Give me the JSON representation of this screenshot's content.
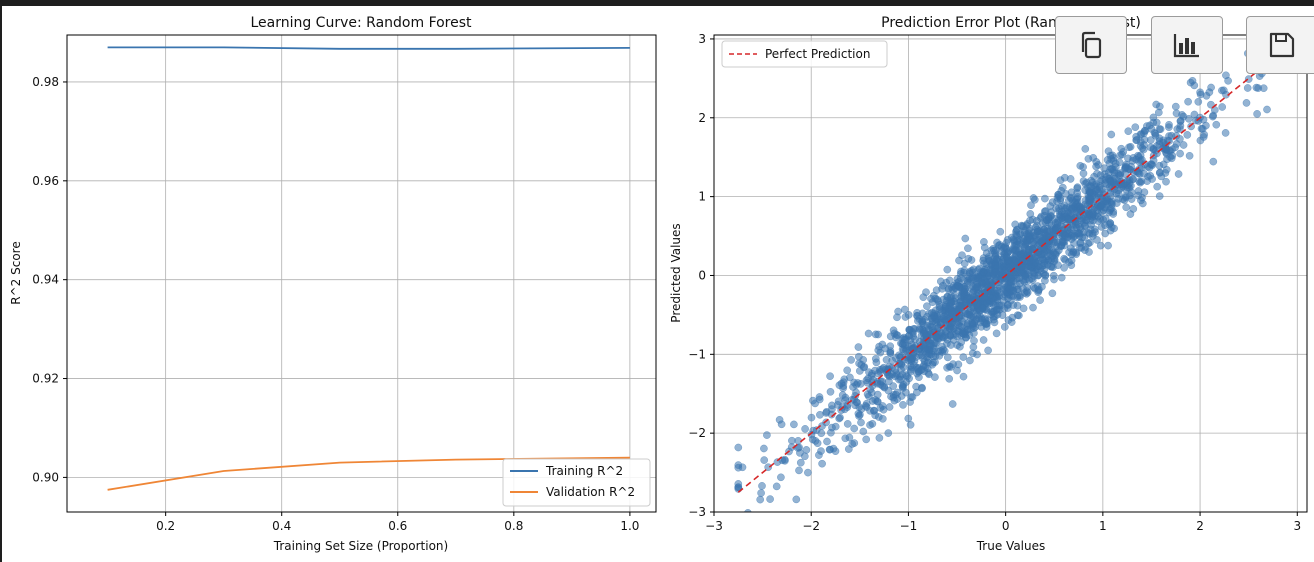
{
  "toolbar": {
    "copy": "copy-icon",
    "chart": "bar-chart-icon",
    "save": "save-icon"
  },
  "chart_data": [
    {
      "type": "line",
      "title": "Learning Curve: Random Forest",
      "xlabel": "Training Set Size (Proportion)",
      "ylabel": "R^2 Score",
      "xlim": [
        0.03,
        1.045
      ],
      "ylim": [
        0.893,
        0.9895
      ],
      "xticks": [
        0.2,
        0.4,
        0.6,
        0.8,
        1.0
      ],
      "xtick_labels": [
        "0.2",
        "0.4",
        "0.6",
        "0.8",
        "1.0"
      ],
      "yticks": [
        0.9,
        0.92,
        0.94,
        0.96,
        0.98
      ],
      "ytick_labels": [
        "0.90",
        "0.92",
        "0.94",
        "0.96",
        "0.98"
      ],
      "grid": true,
      "legend_position": "bottom-right",
      "series": [
        {
          "name": "Training R^2",
          "color": "#3a75af",
          "x": [
            0.1,
            0.3,
            0.5,
            0.7,
            1.0
          ],
          "y": [
            0.987,
            0.987,
            0.9867,
            0.9867,
            0.9869
          ]
        },
        {
          "name": "Validation R^2",
          "color": "#ef8636",
          "x": [
            0.1,
            0.3,
            0.5,
            0.7,
            1.0
          ],
          "y": [
            0.8975,
            0.9013,
            0.903,
            0.9036,
            0.904
          ]
        }
      ]
    },
    {
      "type": "scatter",
      "title": "Prediction Error Plot (Random Forest)",
      "xlabel": "True Values",
      "ylabel": "Predicted Values",
      "xlim": [
        -3.0,
        3.1
      ],
      "ylim": [
        -3.0,
        3.05
      ],
      "xticks": [
        -3,
        -2,
        -1,
        0,
        1,
        2,
        3
      ],
      "xtick_labels": [
        "−3",
        "−2",
        "−1",
        "0",
        "1",
        "2",
        "3"
      ],
      "yticks": [
        -3,
        -2,
        -1,
        0,
        1,
        2,
        3
      ],
      "ytick_labels": [
        "−3",
        "−2",
        "−1",
        "0",
        "1",
        "2",
        "3"
      ],
      "grid": true,
      "legend_position": "top-left",
      "point_color": "#3a75af",
      "point_count_estimate": 2000,
      "x_range": [
        -2.75,
        2.75
      ],
      "noise_sd": 0.27,
      "reference_line": {
        "name": "Perfect Prediction",
        "color": "#d62728",
        "x": [
          -2.75,
          2.75
        ],
        "y": [
          -2.75,
          2.75
        ]
      }
    }
  ]
}
